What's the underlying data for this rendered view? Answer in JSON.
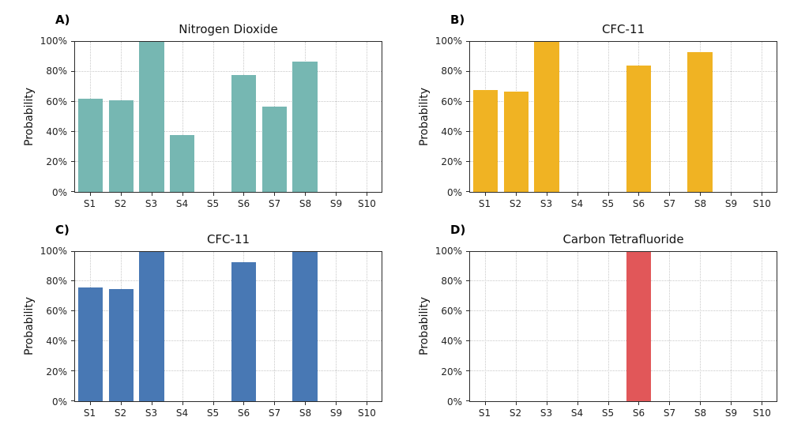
{
  "figure": {
    "background": "#ffffff"
  },
  "axes": {
    "ylabel": "Probability",
    "yticks": [
      "0%",
      "20%",
      "40%",
      "60%",
      "80%",
      "100%"
    ],
    "ylim": [
      0,
      100
    ],
    "grid": "dotted"
  },
  "chart_data": [
    {
      "type": "bar",
      "panel_label": "A)",
      "title": "Nitrogen Dioxide",
      "color": "#76b7b2",
      "categories": [
        "S1",
        "S2",
        "S3",
        "S4",
        "S5",
        "S6",
        "S7",
        "S8",
        "S9",
        "S10"
      ],
      "values": [
        62,
        61,
        100,
        38,
        0,
        78,
        57,
        87,
        0,
        0
      ],
      "xlabel": "",
      "ylabel": "Probability",
      "ylim": [
        0,
        100
      ]
    },
    {
      "type": "bar",
      "panel_label": "B)",
      "title": "CFC-11",
      "color": "#f0b323",
      "categories": [
        "S1",
        "S2",
        "S3",
        "S4",
        "S5",
        "S6",
        "S7",
        "S8",
        "S9",
        "S10"
      ],
      "values": [
        68,
        67,
        100,
        0,
        0,
        84,
        0,
        93,
        0,
        0
      ],
      "xlabel": "",
      "ylabel": "Probability",
      "ylim": [
        0,
        100
      ]
    },
    {
      "type": "bar",
      "panel_label": "C)",
      "title": "CFC-11",
      "color": "#4878b4",
      "categories": [
        "S1",
        "S2",
        "S3",
        "S4",
        "S5",
        "S6",
        "S7",
        "S8",
        "S9",
        "S10"
      ],
      "values": [
        76,
        75,
        100,
        0,
        0,
        93,
        0,
        100,
        0,
        0
      ],
      "xlabel": "",
      "ylabel": "Probability",
      "ylim": [
        0,
        100
      ]
    },
    {
      "type": "bar",
      "panel_label": "D)",
      "title": "Carbon Tetrafluoride",
      "color": "#e15759",
      "categories": [
        "S1",
        "S2",
        "S3",
        "S4",
        "S5",
        "S6",
        "S7",
        "S8",
        "S9",
        "S10"
      ],
      "values": [
        0,
        0,
        0,
        0,
        0,
        100,
        0,
        0,
        0,
        0
      ],
      "xlabel": "",
      "ylabel": "Probability",
      "ylim": [
        0,
        100
      ]
    }
  ]
}
